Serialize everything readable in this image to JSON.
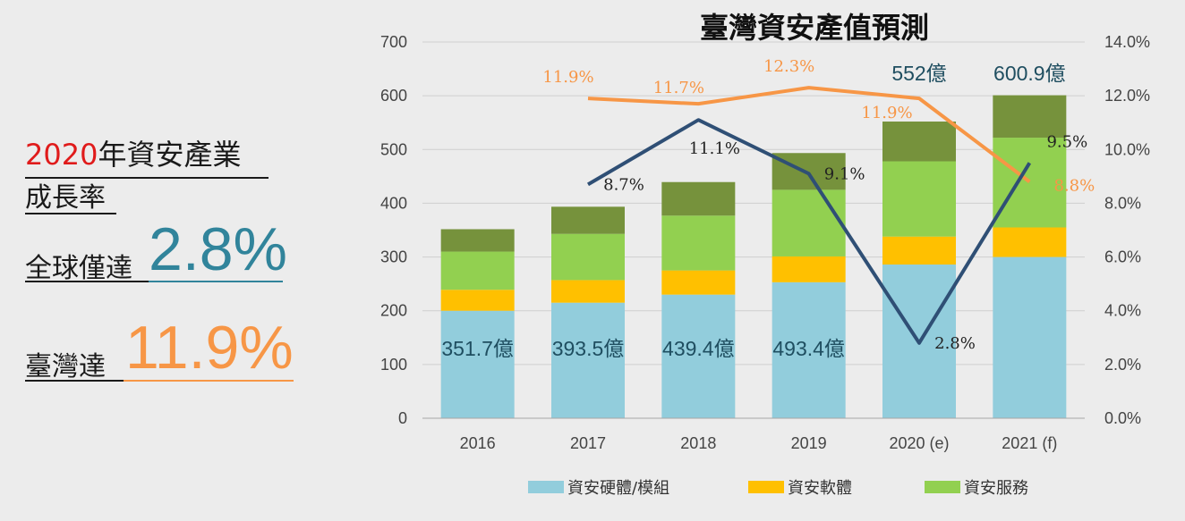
{
  "left_panel": {
    "line1_year": "2020",
    "line1_text": "年資安產業",
    "line2_text": "成長率",
    "line3_text": "全球僅達",
    "line3_value": "2.8%",
    "line4_text": "臺灣達",
    "line4_value": "11.9%"
  },
  "colors": {
    "hardware": "#92cddc",
    "software": "#ffc000",
    "services": "#92d050",
    "other": "#76923c",
    "taiwan_line": "#f79646",
    "global_line": "#2f4f75",
    "highlight_red": "#e01b1b",
    "highlight_teal": "#31849b",
    "highlight_orange": "#f79646",
    "total_label": "#1f4e60"
  },
  "chart_data": {
    "type": "bar",
    "title": "臺灣資安產值預測",
    "categories": [
      "2016",
      "2017",
      "2018",
      "2019",
      "2020 (e)",
      "2021 (f)"
    ],
    "series": [
      {
        "name": "資安硬體/模組",
        "values": [
          200,
          215,
          230,
          253,
          286,
          300
        ]
      },
      {
        "name": "資安軟體",
        "values": [
          39,
          42,
          45,
          48,
          52,
          55
        ]
      },
      {
        "name": "資安服務",
        "values": [
          71,
          86,
          102,
          124,
          140,
          167
        ]
      },
      {
        "values": [
          41.7,
          50.5,
          62.4,
          68.4,
          74,
          78.9
        ]
      }
    ],
    "totals": [
      "351.7億",
      "393.5億",
      "439.4億",
      "493.4億",
      "552億",
      "600.9億"
    ],
    "ylim": [
      0,
      700
    ],
    "yticks": [
      "0",
      "100",
      "200",
      "300",
      "400",
      "500",
      "600",
      "700"
    ],
    "y2lim": [
      0,
      0.14
    ],
    "y2ticks": [
      "0.0%",
      "2.0%",
      "4.0%",
      "6.0%",
      "8.0%",
      "10.0%",
      "12.0%",
      "14.0%"
    ],
    "lines": [
      {
        "categories": [
          "2017",
          "2018",
          "2019",
          "2020 (e)",
          "2021 (f)"
        ],
        "values": [
          0.119,
          0.117,
          0.123,
          0.119,
          0.088
        ],
        "labels": [
          "11.9%",
          "11.7%",
          "12.3%",
          "11.9%",
          "8.8%"
        ]
      },
      {
        "categories": [
          "2017",
          "2018",
          "2019",
          "2020 (e)",
          "2021 (f)"
        ],
        "values": [
          0.087,
          0.111,
          0.091,
          0.028,
          0.095
        ],
        "labels": [
          "8.7%",
          "11.1%",
          "9.1%",
          "2.8%",
          "9.5%"
        ]
      }
    ]
  }
}
